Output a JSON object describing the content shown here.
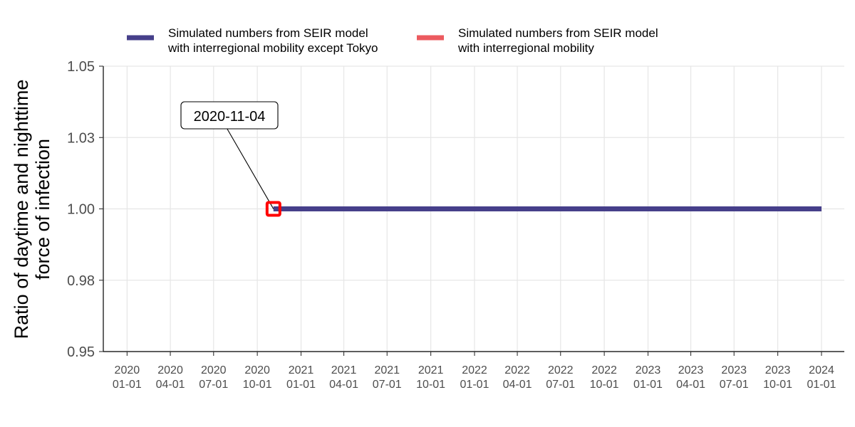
{
  "chart_data": {
    "type": "line",
    "ylabel": [
      "Ratio of daytime and nighttime",
      "force of infection"
    ],
    "xlabel": "",
    "title": "",
    "x_range": [
      "2019-11-12",
      "2024-02-18"
    ],
    "ylim": [
      0.95,
      1.05
    ],
    "x_ticks": [
      {
        "date": "2020-01-01",
        "label": [
          "2020",
          "01-01"
        ]
      },
      {
        "date": "2020-04-01",
        "label": [
          "2020",
          "04-01"
        ]
      },
      {
        "date": "2020-07-01",
        "label": [
          "2020",
          "07-01"
        ]
      },
      {
        "date": "2020-10-01",
        "label": [
          "2020",
          "10-01"
        ]
      },
      {
        "date": "2021-01-01",
        "label": [
          "2021",
          "01-01"
        ]
      },
      {
        "date": "2021-04-01",
        "label": [
          "2021",
          "04-01"
        ]
      },
      {
        "date": "2021-07-01",
        "label": [
          "2021",
          "07-01"
        ]
      },
      {
        "date": "2021-10-01",
        "label": [
          "2021",
          "10-01"
        ]
      },
      {
        "date": "2022-01-01",
        "label": [
          "2022",
          "01-01"
        ]
      },
      {
        "date": "2022-04-01",
        "label": [
          "2022",
          "04-01"
        ]
      },
      {
        "date": "2022-07-01",
        "label": [
          "2022",
          "07-01"
        ]
      },
      {
        "date": "2022-10-01",
        "label": [
          "2022",
          "10-01"
        ]
      },
      {
        "date": "2023-01-01",
        "label": [
          "2023",
          "01-01"
        ]
      },
      {
        "date": "2023-04-01",
        "label": [
          "2023",
          "04-01"
        ]
      },
      {
        "date": "2023-07-01",
        "label": [
          "2023",
          "07-01"
        ]
      },
      {
        "date": "2023-10-01",
        "label": [
          "2023",
          "10-01"
        ]
      },
      {
        "date": "2024-01-01",
        "label": [
          "2024",
          "01-01"
        ]
      }
    ],
    "y_ticks": [
      {
        "value": 0.95,
        "label": "0.95"
      },
      {
        "value": 0.975,
        "label": "0.98"
      },
      {
        "value": 1.0,
        "label": "1.00"
      },
      {
        "value": 1.025,
        "label": "1.03"
      },
      {
        "value": 1.05,
        "label": "1.05"
      }
    ],
    "grid": true,
    "legend_position": "top",
    "series": [
      {
        "name": [
          "Simulated numbers from SEIR model",
          "with interregional mobility except Tokyo"
        ],
        "color": "#463f8a",
        "x": [
          "2020-11-04",
          "2024-01-01"
        ],
        "y": [
          1.0,
          1.0
        ]
      },
      {
        "name": [
          "Simulated numbers from SEIR model",
          "with interregional mobility"
        ],
        "color": "#ec5a5f",
        "x": [],
        "y": []
      }
    ],
    "annotations": [
      {
        "label": "2020-11-04",
        "x": "2020-11-04",
        "y": 1.0,
        "marker_color": "#ff0000"
      }
    ]
  }
}
